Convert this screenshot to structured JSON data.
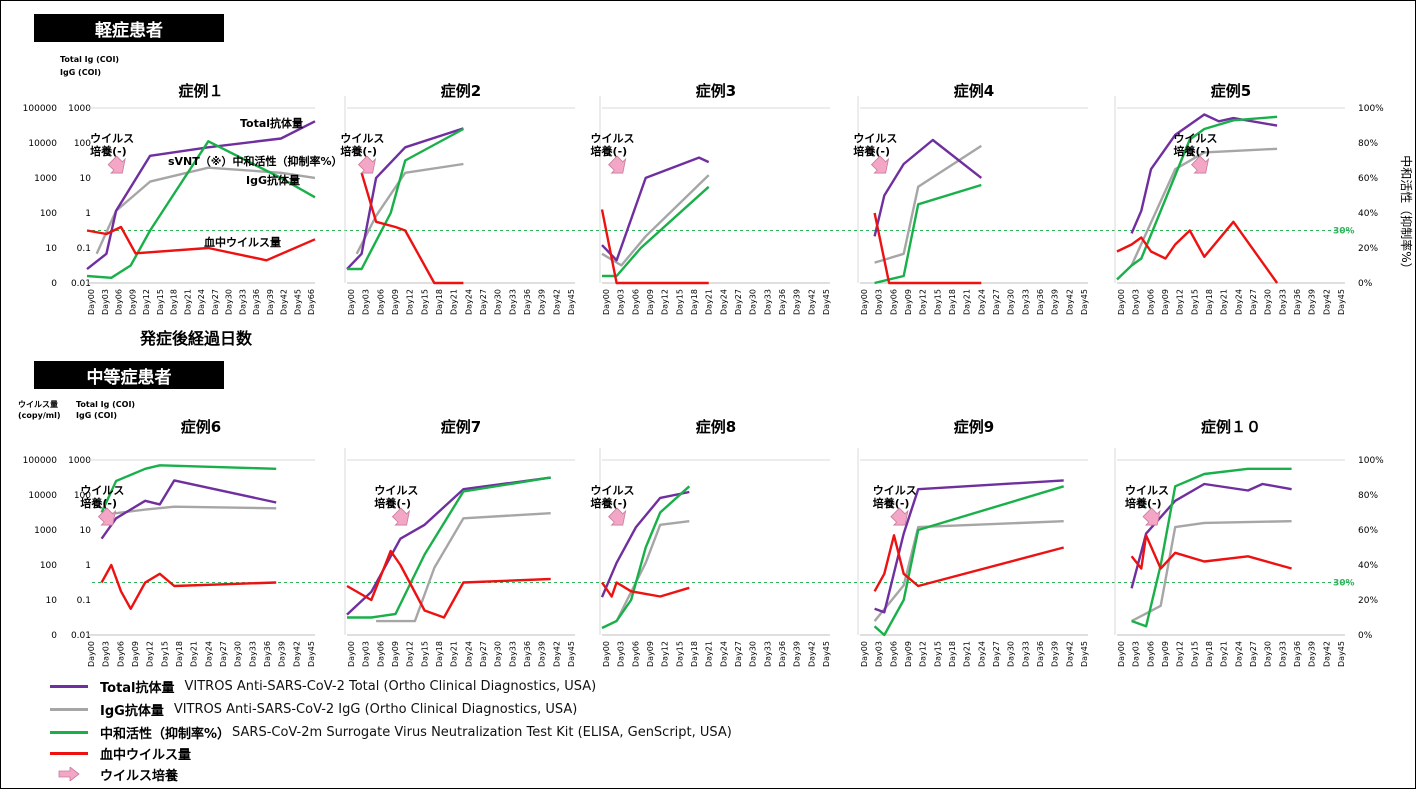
{
  "sections": [
    {
      "label": "軽症患者"
    },
    {
      "label": "中等症患者"
    }
  ],
  "texts": {
    "y_label_top_1": "Total Ig (COI)",
    "y_label_top_2": "IgG (COI)",
    "y_label_bot_1": "ウイルス量",
    "y_label_bot_2": "(copy/ml)",
    "y_label_bot_3": "Total Ig (COI)",
    "y_label_bot_4": "IgG (COI)",
    "x_axis_label": "発症後経過日数",
    "right_axis_label": "中和活性（抑制率%）",
    "line30": "30%",
    "culture_1": "ウイルス",
    "culture_2": "培養(-)",
    "ann_total": "Total抗体量",
    "ann_svnt": "sVNT（※）中和活性（抑制率%）",
    "ann_igg": "IgG抗体量",
    "ann_virus": "血中ウイルス量"
  },
  "colors": {
    "total": "#6f2f9f",
    "igg": "#a6a6a6",
    "neutral": "#19b04a",
    "virus": "#ee1111",
    "arrow": "#f4a6c6",
    "dashed": "#2eb35a"
  },
  "legend": [
    {
      "key": "total",
      "name": "Total抗体量",
      "desc": "VITROS Anti-SARS-CoV-2 Total (Ortho Clinical Diagnostics, USA)"
    },
    {
      "key": "igg",
      "name": "IgG抗体量",
      "desc": "VITROS Anti-SARS-CoV-2 IgG (Ortho Clinical Diagnostics, USA)"
    },
    {
      "key": "neutral",
      "name": "中和活性（抑制率%）",
      "desc": "SARS-CoV-2m Surrogate Virus Neutralization Test Kit (ELISA, GenScript, USA)"
    },
    {
      "key": "virus",
      "name": "血中ウイルス量",
      "desc": ""
    },
    {
      "key": "arrow",
      "name": "ウイルス培養",
      "desc": ""
    }
  ],
  "chart_data": {
    "type": "line",
    "x_axis": "days since onset",
    "x_ticks_short": [
      "Day00",
      "Day03",
      "Day06",
      "Day09",
      "Day12",
      "Day15",
      "Day18",
      "Day21",
      "Day24",
      "Day27",
      "Day30",
      "Day33",
      "Day36",
      "Day39",
      "Day42",
      "Day45"
    ],
    "x_ticks_case1": [
      "Day00",
      "Day03",
      "Day06",
      "Day09",
      "Day12",
      "Day15",
      "Day18",
      "Day21",
      "Day24",
      "Day27",
      "Day30",
      "Day33",
      "Day36",
      "Day39",
      "Day42",
      "Day45",
      "Day66"
    ],
    "y_ticks_viral": [
      "100000",
      "10000",
      "1000",
      "100",
      "10",
      "0"
    ],
    "y_ticks_ab": [
      "1000",
      "100",
      "10",
      "1",
      "0.1",
      "0.01"
    ],
    "y_ticks_pct": [
      "100%",
      "80%",
      "60%",
      "40%",
      "20%",
      "0%"
    ],
    "threshold_percent": 30,
    "cases": [
      {
        "title": "症例１",
        "row": 0,
        "culture_day": 6,
        "total": [
          [
            0,
            0.003
          ],
          [
            4,
            0.01
          ],
          [
            6,
            0.3
          ],
          [
            13,
            23
          ],
          [
            25,
            45
          ],
          [
            40,
            90
          ],
          [
            47,
            350
          ]
        ],
        "igg": [
          [
            2,
            0.01
          ],
          [
            6,
            0.3
          ],
          [
            13,
            3
          ],
          [
            25,
            9
          ],
          [
            40,
            6
          ],
          [
            47,
            4
          ]
        ],
        "neutral": [
          [
            0,
            4
          ],
          [
            5,
            3
          ],
          [
            9,
            10
          ],
          [
            13,
            30
          ],
          [
            25,
            81
          ],
          [
            40,
            60
          ],
          [
            47,
            49
          ]
        ],
        "virus": [
          [
            0,
            30
          ],
          [
            4,
            28
          ],
          [
            7,
            32
          ],
          [
            10,
            17
          ],
          [
            25,
            20
          ],
          [
            37,
            13
          ],
          [
            47,
            25
          ]
        ]
      },
      {
        "title": "症例2",
        "row": 0,
        "culture_day": 4,
        "total": [
          [
            0,
            0.003
          ],
          [
            3,
            0.01
          ],
          [
            6,
            4
          ],
          [
            12,
            45
          ],
          [
            24,
            200
          ]
        ],
        "igg": [
          [
            2,
            0.01
          ],
          [
            6,
            0.2
          ],
          [
            12,
            6
          ],
          [
            24,
            12
          ]
        ],
        "neutral": [
          [
            0,
            8
          ],
          [
            3,
            8
          ],
          [
            9,
            40
          ],
          [
            12,
            70
          ],
          [
            24,
            88
          ]
        ],
        "virus": [
          [
            3,
            63
          ],
          [
            6,
            35
          ],
          [
            10,
            32
          ],
          [
            12,
            30
          ],
          [
            16,
            10
          ],
          [
            18,
            0
          ],
          [
            24,
            0
          ]
        ]
      },
      {
        "title": "症例3",
        "row": 0,
        "culture_day": 3,
        "total": [
          [
            0,
            0.02
          ],
          [
            3,
            0.006
          ],
          [
            9,
            4
          ],
          [
            20,
            20
          ],
          [
            22,
            14
          ]
        ],
        "igg": [
          [
            0,
            0.01
          ],
          [
            4,
            0.004
          ],
          [
            9,
            0.04
          ],
          [
            22,
            5
          ]
        ],
        "neutral": [
          [
            0,
            4
          ],
          [
            3,
            4
          ],
          [
            8,
            20
          ],
          [
            22,
            55
          ]
        ],
        "virus": [
          [
            0,
            42
          ],
          [
            3,
            0
          ],
          [
            22,
            0
          ]
        ]
      },
      {
        "title": "症例4",
        "row": 0,
        "culture_day": 4,
        "total": [
          [
            3,
            0.04
          ],
          [
            5,
            1
          ],
          [
            9,
            12
          ],
          [
            15,
            80
          ],
          [
            25,
            4
          ]
        ],
        "igg": [
          [
            3,
            0.005
          ],
          [
            9,
            0.01
          ],
          [
            12,
            2
          ],
          [
            25,
            50
          ]
        ],
        "neutral": [
          [
            3,
            0
          ],
          [
            9,
            4
          ],
          [
            12,
            45
          ],
          [
            25,
            56
          ]
        ],
        "virus": [
          [
            3,
            40
          ],
          [
            6,
            0
          ],
          [
            25,
            0
          ]
        ]
      },
      {
        "title": "症例5",
        "row": 0,
        "culture_day": 17,
        "total": [
          [
            3,
            0.05
          ],
          [
            5,
            0.3
          ],
          [
            7,
            8
          ],
          [
            12,
            120
          ],
          [
            18,
            600
          ],
          [
            21,
            350
          ],
          [
            24,
            450
          ],
          [
            33,
            250
          ]
        ],
        "igg": [
          [
            3,
            0.004
          ],
          [
            6,
            0.05
          ],
          [
            12,
            8
          ],
          [
            18,
            30
          ],
          [
            33,
            40
          ]
        ],
        "neutral": [
          [
            0,
            2
          ],
          [
            3,
            10
          ],
          [
            5,
            14
          ],
          [
            15,
            82
          ],
          [
            18,
            88
          ],
          [
            24,
            93
          ],
          [
            33,
            95
          ]
        ],
        "virus": [
          [
            0,
            18
          ],
          [
            3,
            22
          ],
          [
            5,
            26
          ],
          [
            7,
            18
          ],
          [
            10,
            14
          ],
          [
            12,
            22
          ],
          [
            15,
            30
          ],
          [
            18,
            15
          ],
          [
            24,
            35
          ],
          [
            33,
            0
          ]
        ]
      },
      {
        "title": "症例6",
        "row": 1,
        "culture_day": 4,
        "total": [
          [
            3,
            2
          ],
          [
            6,
            10
          ],
          [
            12,
            40
          ],
          [
            15,
            30
          ],
          [
            18,
            200
          ],
          [
            39,
            35
          ]
        ],
        "igg": [
          [
            3,
            12
          ],
          [
            6,
            15
          ],
          [
            12,
            20
          ],
          [
            18,
            25
          ],
          [
            39,
            22
          ]
        ],
        "neutral": [
          [
            3,
            70
          ],
          [
            6,
            88
          ],
          [
            12,
            95
          ],
          [
            15,
            97
          ],
          [
            39,
            95
          ]
        ],
        "virus": [
          [
            3,
            30
          ],
          [
            5,
            40
          ],
          [
            7,
            25
          ],
          [
            9,
            15
          ],
          [
            12,
            30
          ],
          [
            15,
            35
          ],
          [
            18,
            28
          ],
          [
            39,
            30
          ]
        ]
      },
      {
        "title": "症例7",
        "row": 1,
        "culture_day": 11,
        "total": [
          [
            0,
            0.005
          ],
          [
            5,
            0.03
          ],
          [
            11,
            2
          ],
          [
            16,
            6
          ],
          [
            24,
            100
          ],
          [
            42,
            250
          ]
        ],
        "igg": [
          [
            6,
            0.003
          ],
          [
            14,
            0.003
          ],
          [
            18,
            0.2
          ],
          [
            24,
            10
          ],
          [
            42,
            15
          ]
        ],
        "neutral": [
          [
            0,
            10
          ],
          [
            5,
            10
          ],
          [
            10,
            12
          ],
          [
            16,
            46
          ],
          [
            24,
            82
          ],
          [
            42,
            90
          ]
        ],
        "virus": [
          [
            0,
            28
          ],
          [
            5,
            20
          ],
          [
            9,
            48
          ],
          [
            11,
            40
          ],
          [
            16,
            14
          ],
          [
            20,
            10
          ],
          [
            24,
            30
          ],
          [
            42,
            32
          ]
        ]
      },
      {
        "title": "症例8",
        "row": 1,
        "culture_day": 3,
        "total": [
          [
            0,
            0.02
          ],
          [
            3,
            0.3
          ],
          [
            7,
            5
          ],
          [
            12,
            50
          ],
          [
            18,
            80
          ]
        ],
        "igg": [
          [
            3,
            0.003
          ],
          [
            9,
            0.3
          ],
          [
            12,
            6
          ],
          [
            18,
            8
          ]
        ],
        "neutral": [
          [
            0,
            4
          ],
          [
            3,
            8
          ],
          [
            6,
            20
          ],
          [
            9,
            50
          ],
          [
            12,
            70
          ],
          [
            18,
            85
          ]
        ],
        "virus": [
          [
            0,
            30
          ],
          [
            2,
            22
          ],
          [
            3,
            30
          ],
          [
            6,
            25
          ],
          [
            12,
            22
          ],
          [
            18,
            27
          ]
        ]
      },
      {
        "title": "症例9",
        "row": 1,
        "culture_day": 8,
        "total": [
          [
            3,
            0.008
          ],
          [
            5,
            0.006
          ],
          [
            9,
            3
          ],
          [
            12,
            100
          ],
          [
            42,
            200
          ]
        ],
        "igg": [
          [
            3,
            0.003
          ],
          [
            9,
            0.05
          ],
          [
            12,
            5
          ],
          [
            42,
            8
          ]
        ],
        "neutral": [
          [
            3,
            5
          ],
          [
            5,
            0
          ],
          [
            9,
            20
          ],
          [
            12,
            60
          ],
          [
            42,
            85
          ]
        ],
        "virus": [
          [
            3,
            25
          ],
          [
            5,
            35
          ],
          [
            7,
            57
          ],
          [
            9,
            35
          ],
          [
            12,
            28
          ],
          [
            42,
            50
          ]
        ]
      },
      {
        "title": "症例１０",
        "row": 1,
        "culture_day": 7,
        "total": [
          [
            3,
            0.04
          ],
          [
            6,
            3
          ],
          [
            12,
            40
          ],
          [
            18,
            150
          ],
          [
            27,
            90
          ],
          [
            30,
            150
          ],
          [
            36,
            100
          ]
        ],
        "igg": [
          [
            3,
            0.003
          ],
          [
            9,
            0.01
          ],
          [
            12,
            5
          ],
          [
            18,
            7
          ],
          [
            36,
            8
          ]
        ],
        "neutral": [
          [
            3,
            8
          ],
          [
            6,
            5
          ],
          [
            9,
            40
          ],
          [
            12,
            85
          ],
          [
            18,
            92
          ],
          [
            27,
            95
          ],
          [
            36,
            95
          ]
        ],
        "virus": [
          [
            3,
            45
          ],
          [
            5,
            38
          ],
          [
            6,
            57
          ],
          [
            9,
            38
          ],
          [
            12,
            47
          ],
          [
            18,
            42
          ],
          [
            27,
            45
          ],
          [
            36,
            38
          ]
        ]
      }
    ]
  }
}
